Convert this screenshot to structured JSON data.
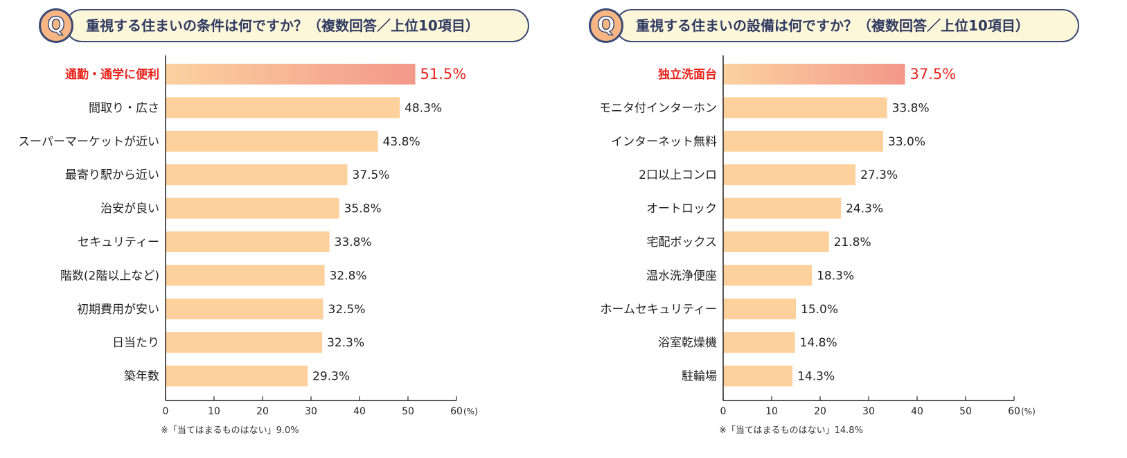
{
  "colors": {
    "bar": "#fdd09c",
    "bar_highlight_start": "#fbd29f",
    "bar_highlight_end": "#f3988a",
    "highlight_text": "#e8221c",
    "title_text": "#2f3a63",
    "q_circle": "#f7b684",
    "q_border": "#3c4a75",
    "title_bg": "#fdf7d9"
  },
  "question_mark": "Q",
  "axis_unit": "(%)",
  "chart_data": [
    {
      "type": "bar",
      "orientation": "horizontal",
      "title": "重視する住まいの条件は何ですか？（複数回答／上位10項目）",
      "categories": [
        "通勤・通学に便利",
        "間取り・広さ",
        "スーパーマーケットが近い",
        "最寄り駅から近い",
        "治安が良い",
        "セキュリティー",
        "階数(2階以上など)",
        "初期費用が安い",
        "日当たり",
        "築年数"
      ],
      "values": [
        51.5,
        48.3,
        43.8,
        37.5,
        35.8,
        33.8,
        32.8,
        32.5,
        32.3,
        29.3
      ],
      "value_labels": [
        "51.5%",
        "48.3%",
        "43.8%",
        "37.5%",
        "35.8%",
        "33.8%",
        "32.8%",
        "32.5%",
        "32.3%",
        "29.3%"
      ],
      "highlight_index": 0,
      "xlim": [
        0,
        60
      ],
      "xticks": [
        0,
        10,
        20,
        30,
        40,
        50,
        60
      ],
      "xunit": "(%)",
      "note": "※「当てはまるものはない」9.0%"
    },
    {
      "type": "bar",
      "orientation": "horizontal",
      "title": "重視する住まいの設備は何ですか？（複数回答／上位10項目）",
      "categories": [
        "独立洗面台",
        "モニタ付インターホン",
        "インターネット無料",
        "2口以上コンロ",
        "オートロック",
        "宅配ボックス",
        "温水洗浄便座",
        "ホームセキュリティー",
        "浴室乾燥機",
        "駐輪場"
      ],
      "values": [
        37.5,
        33.8,
        33.0,
        27.3,
        24.3,
        21.8,
        18.3,
        15.0,
        14.8,
        14.3
      ],
      "value_labels": [
        "37.5%",
        "33.8%",
        "33.0%",
        "27.3%",
        "24.3%",
        "21.8%",
        "18.3%",
        "15.0%",
        "14.8%",
        "14.3%"
      ],
      "highlight_index": 0,
      "xlim": [
        0,
        60
      ],
      "xticks": [
        0,
        10,
        20,
        30,
        40,
        50,
        60
      ],
      "xunit": "(%)",
      "note": "※「当てはまるものはない」14.8%"
    }
  ]
}
